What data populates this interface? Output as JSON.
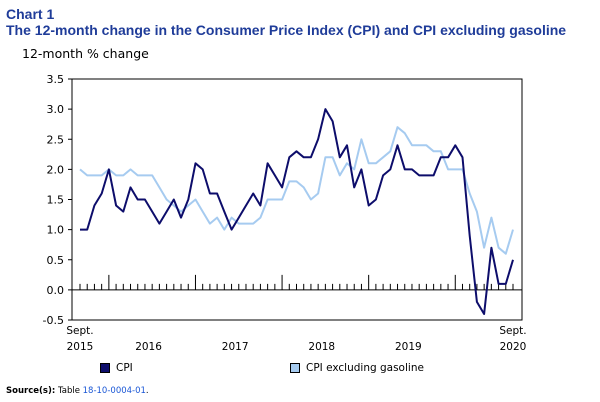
{
  "header": {
    "chart_number": "Chart 1",
    "title": "The 12-month change in the Consumer Price Index (CPI) and CPI excluding gasoline"
  },
  "colors": {
    "cpi": "#0d0d6b",
    "cpi_ex_gas": "#a6cbf0",
    "title": "#1f3c99",
    "link": "#1a57d6"
  },
  "legend": {
    "cpi": "CPI",
    "cpi_ex_gas": "CPI excluding gasoline"
  },
  "source": {
    "label": "Source(s):",
    "text": "Table ",
    "link": "18-10-0004-01",
    "end": "."
  },
  "chart_data": {
    "type": "line",
    "title": "The 12-month change in the Consumer Price Index (CPI) and CPI excluding gasoline",
    "ylabel": "12-month % change",
    "xlabel": "",
    "ylim": [
      -0.5,
      3.5
    ],
    "yticks": [
      "-0.5",
      "0.0",
      "0.5",
      "1.0",
      "1.5",
      "2.0",
      "2.5",
      "3.0",
      "3.5"
    ],
    "x_start_label": [
      "Sept.",
      "2015"
    ],
    "x_end_label": [
      "Sept.",
      "2020"
    ],
    "year_labels": [
      "2016",
      "2017",
      "2018",
      "2019"
    ],
    "months": [
      "2015-09",
      "2015-10",
      "2015-11",
      "2015-12",
      "2016-01",
      "2016-02",
      "2016-03",
      "2016-04",
      "2016-05",
      "2016-06",
      "2016-07",
      "2016-08",
      "2016-09",
      "2016-10",
      "2016-11",
      "2016-12",
      "2017-01",
      "2017-02",
      "2017-03",
      "2017-04",
      "2017-05",
      "2017-06",
      "2017-07",
      "2017-08",
      "2017-09",
      "2017-10",
      "2017-11",
      "2017-12",
      "2018-01",
      "2018-02",
      "2018-03",
      "2018-04",
      "2018-05",
      "2018-06",
      "2018-07",
      "2018-08",
      "2018-09",
      "2018-10",
      "2018-11",
      "2018-12",
      "2019-01",
      "2019-02",
      "2019-03",
      "2019-04",
      "2019-05",
      "2019-06",
      "2019-07",
      "2019-08",
      "2019-09",
      "2019-10",
      "2019-11",
      "2019-12",
      "2020-01",
      "2020-02",
      "2020-03",
      "2020-04",
      "2020-05",
      "2020-06",
      "2020-07",
      "2020-08",
      "2020-09"
    ],
    "series": [
      {
        "name": "CPI",
        "values": [
          1.0,
          1.0,
          1.4,
          1.6,
          2.0,
          1.4,
          1.3,
          1.7,
          1.5,
          1.5,
          1.3,
          1.1,
          1.3,
          1.5,
          1.2,
          1.5,
          2.1,
          2.0,
          1.6,
          1.6,
          1.3,
          1.0,
          1.2,
          1.4,
          1.6,
          1.4,
          2.1,
          1.9,
          1.7,
          2.2,
          2.3,
          2.2,
          2.2,
          2.5,
          3.0,
          2.8,
          2.2,
          2.4,
          1.7,
          2.0,
          1.4,
          1.5,
          1.9,
          2.0,
          2.4,
          2.0,
          2.0,
          1.9,
          1.9,
          1.9,
          2.2,
          2.2,
          2.4,
          2.2,
          0.9,
          -0.2,
          -0.4,
          0.7,
          0.1,
          0.1,
          0.5
        ]
      },
      {
        "name": "CPI excluding gasoline",
        "values": [
          2.0,
          1.9,
          1.9,
          1.9,
          2.0,
          1.9,
          1.9,
          2.0,
          1.9,
          1.9,
          1.9,
          1.7,
          1.5,
          1.4,
          1.3,
          1.4,
          1.5,
          1.3,
          1.1,
          1.2,
          1.0,
          1.2,
          1.1,
          1.1,
          1.1,
          1.2,
          1.5,
          1.5,
          1.5,
          1.8,
          1.8,
          1.7,
          1.5,
          1.6,
          2.2,
          2.2,
          1.9,
          2.1,
          2.0,
          2.5,
          2.1,
          2.1,
          2.2,
          2.3,
          2.7,
          2.6,
          2.4,
          2.4,
          2.4,
          2.3,
          2.3,
          2.0,
          2.0,
          2.0,
          1.6,
          1.3,
          0.7,
          1.2,
          0.7,
          0.6,
          1.0
        ]
      }
    ]
  }
}
